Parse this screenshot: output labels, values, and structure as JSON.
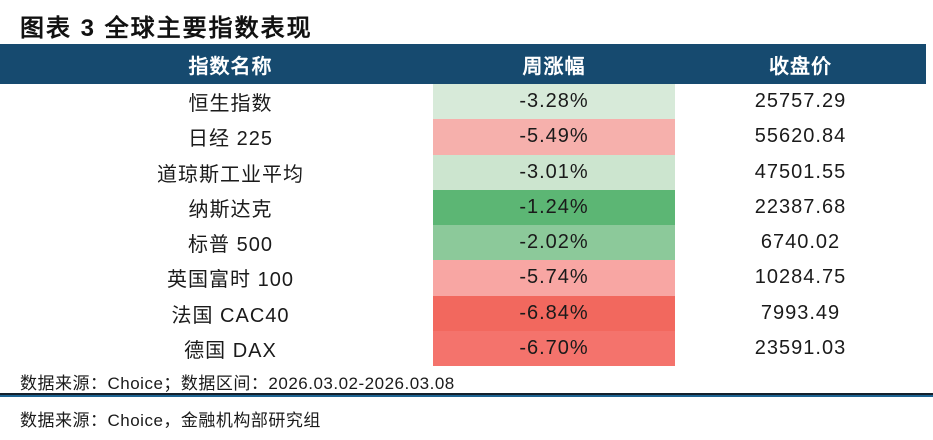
{
  "title": "图表 3 全球主要指数表现",
  "table": {
    "columns": [
      "指数名称",
      "周涨幅",
      "收盘价"
    ],
    "rows": [
      {
        "name": "恒生指数",
        "weekly_change": "-3.28%",
        "close": "25757.29",
        "change_bg": "#D7EAD9"
      },
      {
        "name": "日经 225",
        "weekly_change": "-5.49%",
        "close": "55620.84",
        "change_bg": "#F6B0AC"
      },
      {
        "name": "道琼斯工业平均",
        "weekly_change": "-3.01%",
        "close": "47501.55",
        "change_bg": "#CCE5CF"
      },
      {
        "name": "纳斯达克",
        "weekly_change": "-1.24%",
        "close": "22387.68",
        "change_bg": "#5CB674"
      },
      {
        "name": "标普 500",
        "weekly_change": "-2.02%",
        "close": "6740.02",
        "change_bg": "#8CC99A"
      },
      {
        "name": "英国富时 100",
        "weekly_change": "-5.74%",
        "close": "10284.75",
        "change_bg": "#F8A6A3"
      },
      {
        "name": "法国 CAC40",
        "weekly_change": "-6.84%",
        "close": "7993.49",
        "change_bg": "#F2685E"
      },
      {
        "name": "德国 DAX",
        "weekly_change": "-6.70%",
        "close": "23591.03",
        "change_bg": "#F4736C"
      }
    ]
  },
  "footer": {
    "source_line": "数据来源：Choice；数据区间：2026.03.02-2026.03.08",
    "credit_line": "数据来源：Choice，金融机构部研究组"
  },
  "colors": {
    "header_bg": "#164A6F",
    "header_text": "#FFFFFF",
    "divider_blue": "#1E6493",
    "divider_dark": "#13202C",
    "gain_scale_green": "#5CB674",
    "loss_scale_red": "#F2685E"
  },
  "chart_data": {
    "type": "table",
    "title": "图表 3 全球主要指数表现",
    "columns": [
      "指数名称",
      "周涨幅",
      "收盘价"
    ],
    "rows": [
      [
        "恒生指数",
        -3.28,
        25757.29
      ],
      [
        "日经 225",
        -5.49,
        55620.84
      ],
      [
        "道琼斯工业平均",
        -3.01,
        47501.55
      ],
      [
        "纳斯达克",
        -1.24,
        22387.68
      ],
      [
        "标普 500",
        -2.02,
        6740.02
      ],
      [
        "英国富时 100",
        -5.74,
        10284.75
      ],
      [
        "法国 CAC40",
        -6.84,
        7993.49
      ],
      [
        "德国 DAX",
        -6.7,
        23591.03
      ]
    ],
    "weekly_change_unit": "%",
    "conditional_format": "green (least negative) to red (most negative) on 周涨幅 column",
    "notes": [
      "数据来源：Choice；数据区间：2026.03.02-2026.03.08",
      "数据来源：Choice，金融机构部研究组"
    ]
  }
}
